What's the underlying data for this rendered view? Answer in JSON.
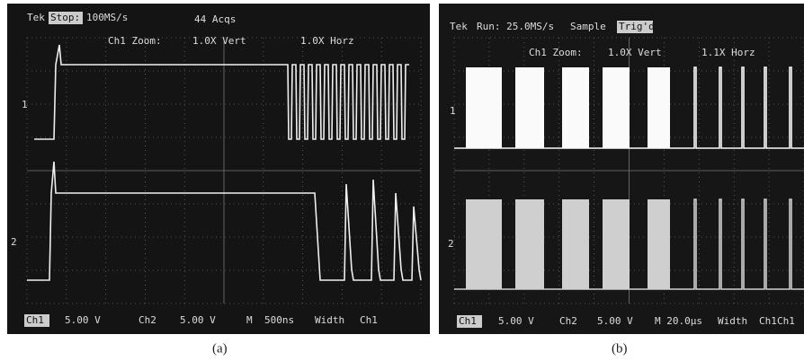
{
  "panels": [
    {
      "header": {
        "brand": "Tek",
        "state": "Stop:",
        "rate": "100MS/s",
        "acqs": "44 Acqs"
      },
      "zoom": {
        "label": "Ch1 Zoom:",
        "vert": "1.0X Vert",
        "horz": "1.0X Horz"
      },
      "markers": [
        "1",
        "2"
      ],
      "footer": [
        "Ch1",
        "5.00 V",
        "Ch2",
        "5.00 V",
        "M",
        "500ns",
        "Width",
        "Ch1"
      ],
      "caption": "(a)"
    },
    {
      "header": {
        "brand": "Tek",
        "state": "Run: 25.0MS/s",
        "mode": "Sample",
        "trig": "Trig'd"
      },
      "zoom": {
        "label": "Ch1 Zoom:",
        "vert": "1.0X Vert",
        "horz": "1.1X Horz"
      },
      "markers": [
        "1",
        "2"
      ],
      "footer": [
        "Ch1",
        "5.00 V",
        "Ch2",
        "5.00 V",
        "M 20.0µs",
        "Width",
        "Ch1"
      ],
      "caption": "(b)"
    }
  ]
}
